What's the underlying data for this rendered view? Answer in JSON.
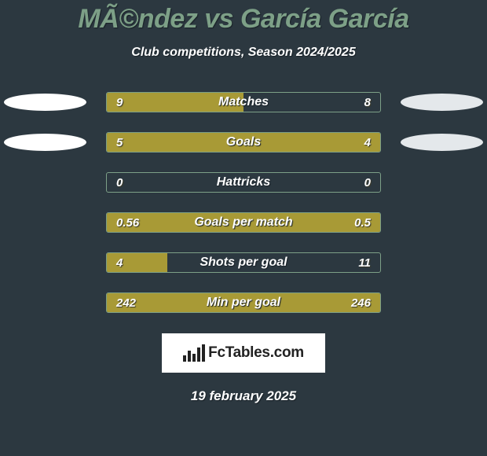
{
  "title": "MÃ©ndez vs García García",
  "subtitle": "Club competitions, Season 2024/2025",
  "date_text": "19 february 2025",
  "logo_text": "FcTables.com",
  "colors": {
    "background": "#2c3840",
    "title_color": "#7da087",
    "bar_border": "#7da087",
    "bar_fill": "#a89a36",
    "oval_left": "#ffffff",
    "oval_right": "#e4e8eb"
  },
  "stats": [
    {
      "label": "Matches",
      "left_val": "9",
      "right_val": "8",
      "left_pct": 50,
      "right_pct": 0,
      "show_ovals": true
    },
    {
      "label": "Goals",
      "left_val": "5",
      "right_val": "4",
      "left_pct": 50,
      "right_pct": 50,
      "show_ovals": true
    },
    {
      "label": "Hattricks",
      "left_val": "0",
      "right_val": "0",
      "left_pct": 0,
      "right_pct": 0,
      "show_ovals": false
    },
    {
      "label": "Goals per match",
      "left_val": "0.56",
      "right_val": "0.5",
      "left_pct": 50,
      "right_pct": 50,
      "show_ovals": false
    },
    {
      "label": "Shots per goal",
      "left_val": "4",
      "right_val": "11",
      "left_pct": 22,
      "right_pct": 0,
      "show_ovals": false
    },
    {
      "label": "Min per goal",
      "left_val": "242",
      "right_val": "246",
      "left_pct": 50,
      "right_pct": 50,
      "show_ovals": false
    }
  ]
}
